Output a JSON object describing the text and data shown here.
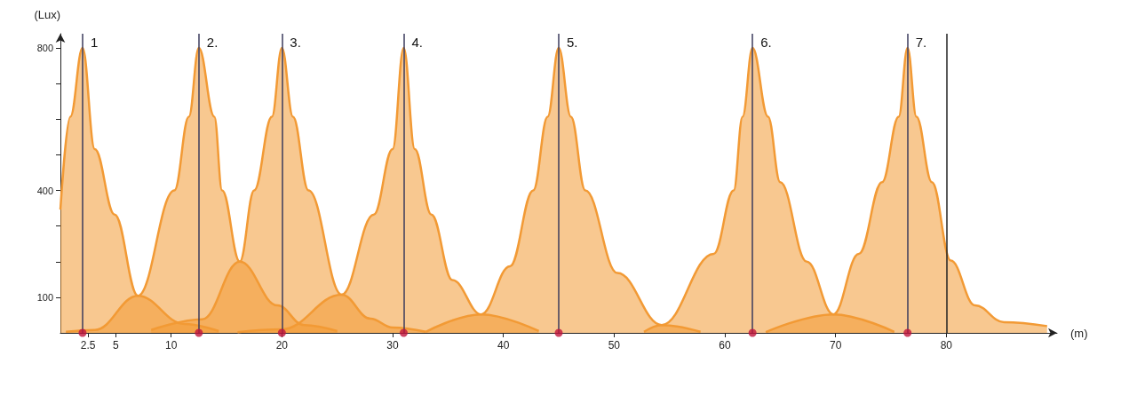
{
  "chart_data": {
    "type": "area",
    "xlabel": "(m)",
    "ylabel": "(Lux)",
    "xlim": [
      0,
      90
    ],
    "ylim": [
      0,
      840
    ],
    "xticks": [
      2.5,
      5,
      10,
      20,
      30,
      40,
      50,
      60,
      70,
      80
    ],
    "yticks": [
      100,
      {
        "value": 200,
        "label": null
      },
      {
        "value": 300,
        "label": null
      },
      400,
      {
        "value": 500,
        "label": null
      },
      {
        "value": 600,
        "label": null
      },
      {
        "value": 700,
        "label": null
      },
      800
    ],
    "marker": "none",
    "series": [
      {
        "color": "#f29a35",
        "x": [
          0,
          0.9,
          2,
          3.1,
          4.9,
          7,
          11.2,
          14.3
        ],
        "values": [
          346,
          607,
          800,
          516,
          332,
          104,
          25,
          5
        ]
      },
      {
        "color": "#f29a35",
        "x": [
          0.5,
          3.1,
          7,
          10.3,
          11.6,
          12.5,
          13.9,
          14.6,
          16.2,
          19.6,
          22,
          25
        ],
        "values": [
          3,
          8,
          104,
          400,
          607,
          800,
          607,
          400,
          200,
          77,
          22,
          5
        ]
      },
      {
        "color": "#f29a35",
        "x": [
          8.2,
          12.8,
          16.2,
          17.5,
          19.1,
          20,
          21,
          22.4,
          25.4,
          28,
          30,
          33
        ],
        "values": [
          8,
          38,
          200,
          400,
          607,
          800,
          607,
          400,
          107,
          40,
          15,
          3
        ]
      },
      {
        "color": "#f29a35",
        "x": [
          16,
          20,
          25.4,
          28.3,
          30,
          31,
          32,
          33.5,
          35.4,
          38,
          43.2
        ],
        "values": [
          2,
          10,
          107,
          332,
          516,
          800,
          516,
          332,
          148,
          52,
          5
        ]
      },
      {
        "color": "#f29a35",
        "x": [
          33,
          38,
          40.6,
          42.7,
          44,
          45,
          46.1,
          47.4,
          50.3,
          54.3,
          57.8
        ],
        "values": [
          3,
          52,
          187,
          400,
          607,
          800,
          607,
          400,
          168,
          22,
          3
        ]
      },
      {
        "color": "#f29a35",
        "x": [
          52.7,
          54.3,
          59,
          60.8,
          61.6,
          62.5,
          63.9,
          65,
          67.4,
          69.8,
          75.3
        ],
        "values": [
          3,
          22,
          222,
          400,
          607,
          800,
          607,
          423,
          200,
          52,
          3
        ]
      },
      {
        "color": "#f29a35",
        "x": [
          63.7,
          69.8,
          72.1,
          74.2,
          75.7,
          76.5,
          77.3,
          78.7,
          80.4,
          82.6,
          85.2,
          89.1
        ],
        "values": [
          2,
          52,
          222,
          423,
          607,
          800,
          607,
          423,
          203,
          77,
          30,
          19
        ]
      },
      {
        "type": "scatter",
        "color": "#c0143c",
        "marker": "circle",
        "x": [
          2,
          12.5,
          20,
          31,
          45,
          62.5,
          76.5
        ],
        "values": [
          0,
          0,
          0,
          0,
          0,
          0,
          0
        ]
      }
    ],
    "ref_lines": [
      {
        "axis": "x",
        "value": 2,
        "color": "#3b3b5c"
      },
      {
        "axis": "x",
        "value": 12.5,
        "color": "#3b3b5c"
      },
      {
        "axis": "x",
        "value": 20,
        "color": "#3b3b5c"
      },
      {
        "axis": "x",
        "value": 31,
        "color": "#3b3b5c"
      },
      {
        "axis": "x",
        "value": 45,
        "color": "#3b3b5c"
      },
      {
        "axis": "x",
        "value": 62.5,
        "color": "#3b3b5c"
      },
      {
        "axis": "x",
        "value": 76.5,
        "color": "#3b3b5c"
      },
      {
        "axis": "x",
        "value": 80,
        "color": "#222222"
      }
    ],
    "annotations": [
      {
        "text": "1",
        "x": 2,
        "y": 800
      },
      {
        "text": "2.",
        "x": 12.5,
        "y": 800
      },
      {
        "text": "3.",
        "x": 20,
        "y": 800
      },
      {
        "text": "4.",
        "x": 31,
        "y": 800
      },
      {
        "text": "5.",
        "x": 45,
        "y": 800
      },
      {
        "text": "6.",
        "x": 62.5,
        "y": 800
      },
      {
        "text": "7.",
        "x": 76.5,
        "y": 800
      }
    ]
  }
}
